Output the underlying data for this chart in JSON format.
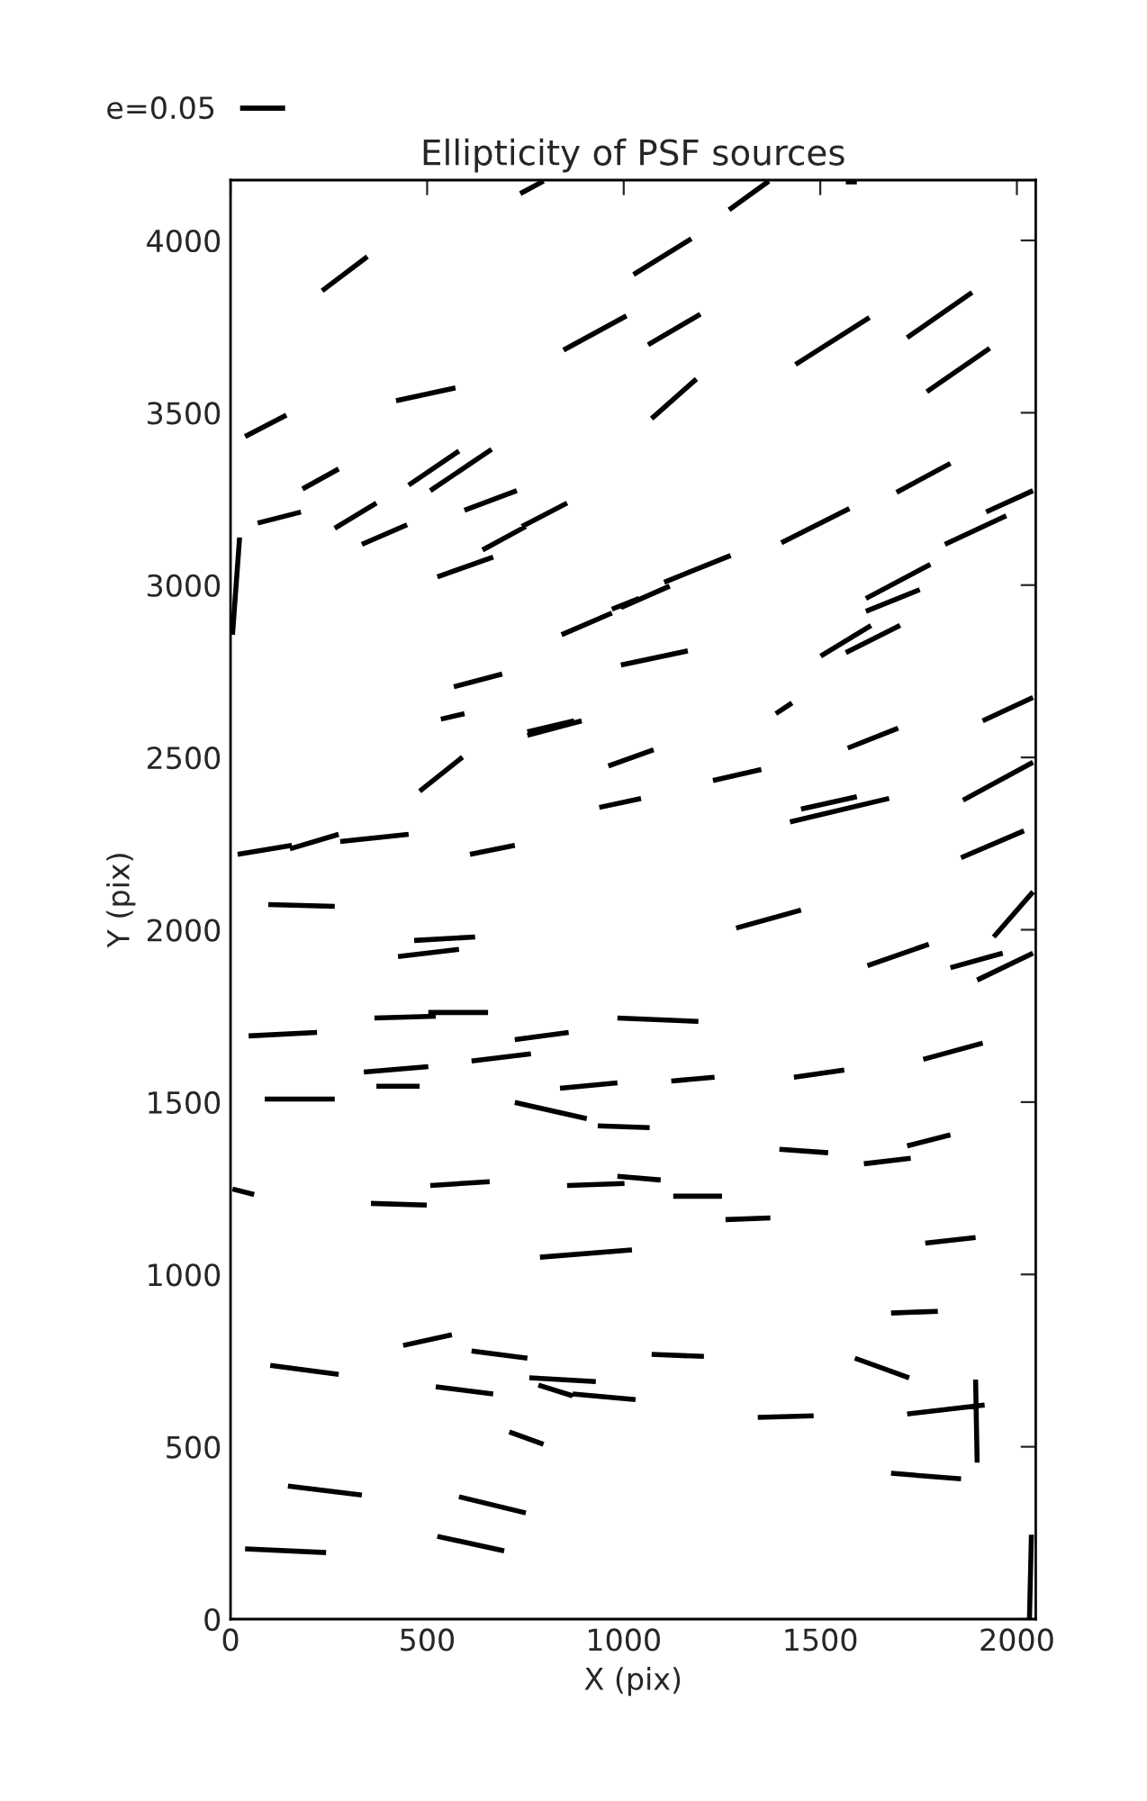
{
  "chart_data": {
    "type": "line",
    "title": "Ellipticity of PSF sources",
    "xlabel": "X (pix)",
    "ylabel": "Y (pix)",
    "xlim": [
      0,
      2048
    ],
    "ylim": [
      0,
      4175
    ],
    "xticks": [
      0,
      500,
      1000,
      1500,
      2000
    ],
    "yticks": [
      0,
      500,
      1000,
      1500,
      2000,
      2500,
      3000,
      3500,
      4000
    ],
    "grid": false,
    "legend": "top left",
    "marker": "none",
    "line_style": "solid",
    "series": [
      {
        "name": "e=0.05",
        "color": "#000000",
        "x": [
          737,
          796,
          null,
          1268,
          1369,
          null,
          1565,
          1593,
          null,
          233,
          348,
          null,
          1025,
          1172,
          null,
          847,
          1007,
          null,
          1062,
          1195,
          null,
          1071,
          1185,
          null,
          1437,
          1625,
          null,
          1721,
          1886,
          null,
          1771,
          1931,
          null,
          37,
          142,
          null,
          421,
          572,
          null,
          183,
          275,
          null,
          69,
          179,
          null,
          265,
          371,
          null,
          334,
          449,
          null,
          453,
          581,
          null,
          508,
          664,
          null,
          595,
          728,
          null,
          641,
          751,
          null,
          741,
          856,
          null,
          526,
          668,
          null,
          842,
          970,
          null,
          970,
          1039,
          null,
          5,
          23,
          null,
          1694,
          1831,
          null,
          1922,
          2041,
          null,
          1817,
          1973,
          null,
          1401,
          1574,
          null,
          993,
          1117,
          null,
          1103,
          1272,
          null,
          1616,
          1780,
          null,
          1616,
          1753,
          null,
          1501,
          1629,
          null,
          1565,
          1703,
          null,
          993,
          1163,
          null,
          568,
          691,
          null,
          535,
          595,
          null,
          755,
          893,
          null,
          755,
          874,
          null,
          481,
          590,
          null,
          961,
          1076,
          null,
          938,
          1044,
          null,
          18,
          156,
          null,
          151,
          275,
          null,
          279,
          453,
          null,
          609,
          723,
          null,
          96,
          265,
          null,
          467,
          622,
          null,
          426,
          581,
          null,
          366,
          522,
          null,
          503,
          655,
          null,
          984,
          1190,
          null,
          46,
          220,
          null,
          723,
          860,
          null,
          339,
          503,
          null,
          613,
          764,
          null,
          371,
          481,
          null,
          838,
          984,
          null,
          87,
          265,
          null,
          723,
          906,
          null,
          934,
          1066,
          null,
          1387,
          1428,
          null,
          1570,
          1698,
          null,
          1913,
          2041,
          null,
          1227,
          1350,
          null,
          1863,
          2041,
          null,
          1451,
          1593,
          null,
          1423,
          1675,
          null,
          1858,
          2018,
          null,
          1286,
          1451,
          null,
          1941,
          2041,
          null,
          1620,
          1776,
          null,
          1831,
          1964,
          null,
          1899,
          2041,
          null,
          1121,
          1231,
          null,
          1433,
          1561,
          null,
          1762,
          1913,
          null,
          1721,
          1831,
          null,
          1396,
          1520,
          null,
          1611,
          1730,
          null,
          5,
          60,
          null,
          357,
          499,
          null,
          508,
          659,
          null,
          856,
          1002,
          null,
          984,
          1094,
          null,
          1126,
          1250,
          null,
          1259,
          1373,
          null,
          787,
          1021,
          null,
          1767,
          1895,
          null,
          1680,
          1799,
          null,
          439,
          563,
          null,
          613,
          755,
          null,
          101,
          275,
          null,
          522,
          668,
          null,
          760,
          929,
          null,
          783,
          870,
          null,
          870,
          1030,
          null,
          1071,
          1204,
          null,
          1588,
          1726,
          null,
          1341,
          1483,
          null,
          1721,
          1918,
          null,
          1895,
          1899,
          null,
          1680,
          1858,
          null,
          709,
          796,
          null,
          146,
          334,
          null,
          581,
          751,
          null,
          37,
          243,
          null,
          526,
          696,
          null,
          2037,
          2032
        ],
        "values": [
          4136,
          4172,
          null,
          4089,
          4172,
          null,
          4170,
          4170,
          null,
          3854,
          3953,
          null,
          3901,
          4005,
          null,
          3682,
          3781,
          null,
          3697,
          3786,
          null,
          3483,
          3598,
          null,
          3640,
          3776,
          null,
          3718,
          3849,
          null,
          3561,
          3687,
          null,
          3431,
          3493,
          null,
          3535,
          3572,
          null,
          3279,
          3337,
          null,
          3180,
          3212,
          null,
          3165,
          3238,
          null,
          3118,
          3175,
          null,
          3290,
          3389,
          null,
          3274,
          3394,
          null,
          3217,
          3274,
          null,
          3102,
          3170,
          null,
          3170,
          3238,
          null,
          3024,
          3081,
          null,
          2856,
          2919,
          null,
          2930,
          2961,
          null,
          2856,
          3138,
          null,
          3269,
          3353,
          null,
          3212,
          3274,
          null,
          3118,
          3201,
          null,
          3123,
          3222,
          null,
          2935,
          2997,
          null,
          3008,
          3086,
          null,
          2961,
          3060,
          null,
          2924,
          2987,
          null,
          2794,
          2883,
          null,
          2804,
          2883,
          null,
          2768,
          2809,
          null,
          2705,
          2742,
          null,
          2611,
          2627,
          null,
          2564,
          2606,
          null,
          2574,
          2606,
          null,
          2402,
          2501,
          null,
          2475,
          2522,
          null,
          2355,
          2381,
          null,
          2219,
          2245,
          null,
          2235,
          2277,
          null,
          2256,
          2277,
          null,
          2219,
          2245,
          null,
          2073,
          2068,
          null,
          1969,
          1979,
          null,
          1922,
          1943,
          null,
          1744,
          1749,
          null,
          1760,
          1760,
          null,
          1744,
          1734,
          null,
          1692,
          1702,
          null,
          1681,
          1702,
          null,
          1587,
          1603,
          null,
          1619,
          1640,
          null,
          1546,
          1546,
          null,
          1540,
          1556,
          null,
          1509,
          1509,
          null,
          1499,
          1452,
          null,
          1431,
          1426,
          null,
          2627,
          2658,
          null,
          2527,
          2585,
          null,
          2606,
          2674,
          null,
          2433,
          2465,
          null,
          2376,
          2486,
          null,
          2350,
          2386,
          null,
          2313,
          2381,
          null,
          2209,
          2287,
          null,
          2005,
          2057,
          null,
          1979,
          2110,
          null,
          1896,
          1958,
          null,
          1890,
          1932,
          null,
          1854,
          1932,
          null,
          1561,
          1572,
          null,
          1572,
          1593,
          null,
          1624,
          1671,
          null,
          1373,
          1405,
          null,
          1363,
          1353,
          null,
          1321,
          1337,
          null,
          1248,
          1232,
          null,
          1206,
          1201,
          null,
          1258,
          1269,
          null,
          1258,
          1264,
          null,
          1285,
          1274,
          null,
          1227,
          1227,
          null,
          1159,
          1164,
          null,
          1050,
          1071,
          null,
          1091,
          1107,
          null,
          888,
          893,
          null,
          794,
          825,
          null,
          778,
          757,
          null,
          736,
          710,
          null,
          674,
          653,
          null,
          700,
          689,
          null,
          679,
          648,
          null,
          653,
          637,
          null,
          768,
          762,
          null,
          757,
          700,
          null,
          585,
          590,
          null,
          595,
          621,
          null,
          695,
          454,
          null,
          423,
          407,
          null,
          543,
          507,
          null,
          386,
          360,
          null,
          355,
          308,
          null,
          204,
          193,
          null,
          240,
          198,
          null,
          245,
          0
        ]
      }
    ]
  }
}
